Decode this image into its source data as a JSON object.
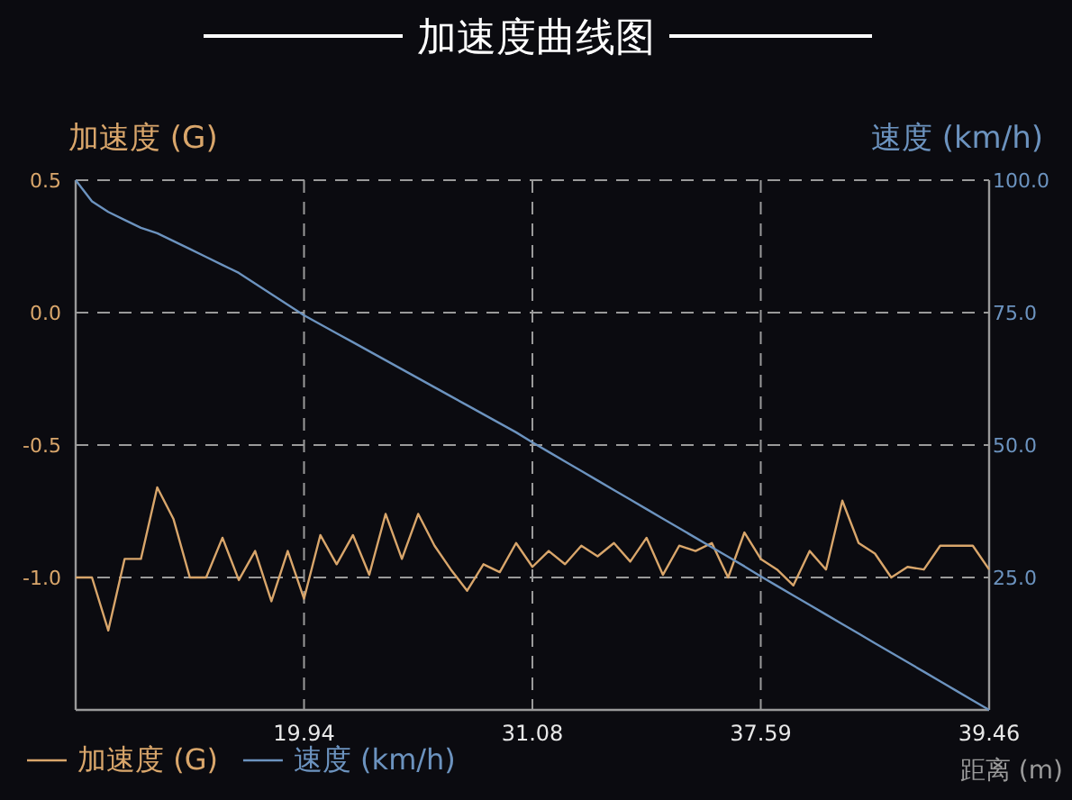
{
  "chart_data": {
    "type": "line",
    "title": "加速度曲线图",
    "ylabel": "加速度 (G)",
    "y2label": "速度 (km/h)",
    "xlabel": "距离 (m)",
    "categories": [
      null,
      null,
      null,
      null,
      null,
      null,
      null,
      null,
      null,
      null,
      null,
      null,
      null,
      null,
      "19.94",
      null,
      null,
      null,
      null,
      null,
      null,
      null,
      null,
      null,
      null,
      null,
      null,
      null,
      "31.08",
      null,
      null,
      null,
      null,
      null,
      null,
      null,
      null,
      null,
      null,
      null,
      null,
      null,
      "37.59",
      null,
      null,
      null,
      null,
      null,
      null,
      null,
      null,
      null,
      null,
      null,
      null,
      null,
      "39.46"
    ],
    "ylim": [
      -1.5,
      0.5
    ],
    "yticks": [
      {
        "value": -1.0,
        "label": "-1.0"
      },
      {
        "value": -0.5,
        "label": "-0.5"
      },
      {
        "value": 0.0,
        "label": "0.0"
      },
      {
        "value": 0.5,
        "label": "0.5"
      }
    ],
    "y2lim": [
      0,
      100
    ],
    "y2ticks": [
      {
        "value": 25,
        "label": "25.0"
      },
      {
        "value": 50,
        "label": "50.0"
      },
      {
        "value": 75,
        "label": "75.0"
      },
      {
        "value": 100,
        "label": "100.0"
      }
    ],
    "grid": true,
    "legend": "bottom left",
    "line_style": "solid",
    "marker": "none",
    "series": [
      {
        "name": "加速度 (G)",
        "color": "#d9a66b",
        "values": [
          -1.0,
          -1.0,
          -1.2,
          -0.93,
          -0.93,
          -0.66,
          -0.78,
          -1.0,
          -1.0,
          -0.85,
          -1.01,
          -0.9,
          -1.09,
          -0.9,
          -1.08,
          -0.84,
          -0.95,
          -0.84,
          -0.99,
          -0.76,
          -0.93,
          -0.76,
          -0.88,
          -0.97,
          -1.05,
          -0.95,
          -0.98,
          -0.87,
          -0.96,
          -0.9,
          -0.95,
          -0.88,
          -0.92,
          -0.87,
          -0.94,
          -0.85,
          -0.99,
          -0.88,
          -0.9,
          -0.87,
          -1.0,
          -0.83,
          -0.93,
          -0.97,
          -1.03,
          -0.9,
          -0.97,
          -0.71,
          -0.87,
          -0.91,
          -1.0,
          -0.96,
          -0.97,
          -0.88,
          -0.88,
          -0.88,
          -0.97
        ]
      },
      {
        "name": "速度 (km/h)",
        "color": "#6c93bf",
        "axis": "y2",
        "values": [
          100,
          96,
          94,
          92.5,
          91,
          90,
          88.5,
          87,
          85.5,
          84,
          82.5,
          80.5,
          78.5,
          76.5,
          74.5,
          72.8,
          71.1,
          69.4,
          67.7,
          66,
          64.3,
          62.6,
          60.9,
          59.2,
          57.5,
          55.8,
          54.1,
          52.4,
          50.5,
          48.7,
          46.9,
          45.1,
          43.3,
          41.5,
          39.7,
          37.9,
          36.1,
          34.3,
          32.5,
          30.7,
          28.9,
          27.1,
          25.2,
          23.4,
          21.6,
          19.8,
          18,
          16.2,
          14.4,
          12.6,
          10.8,
          9,
          7.2,
          5.4,
          3.6,
          1.8,
          0
        ]
      }
    ]
  }
}
